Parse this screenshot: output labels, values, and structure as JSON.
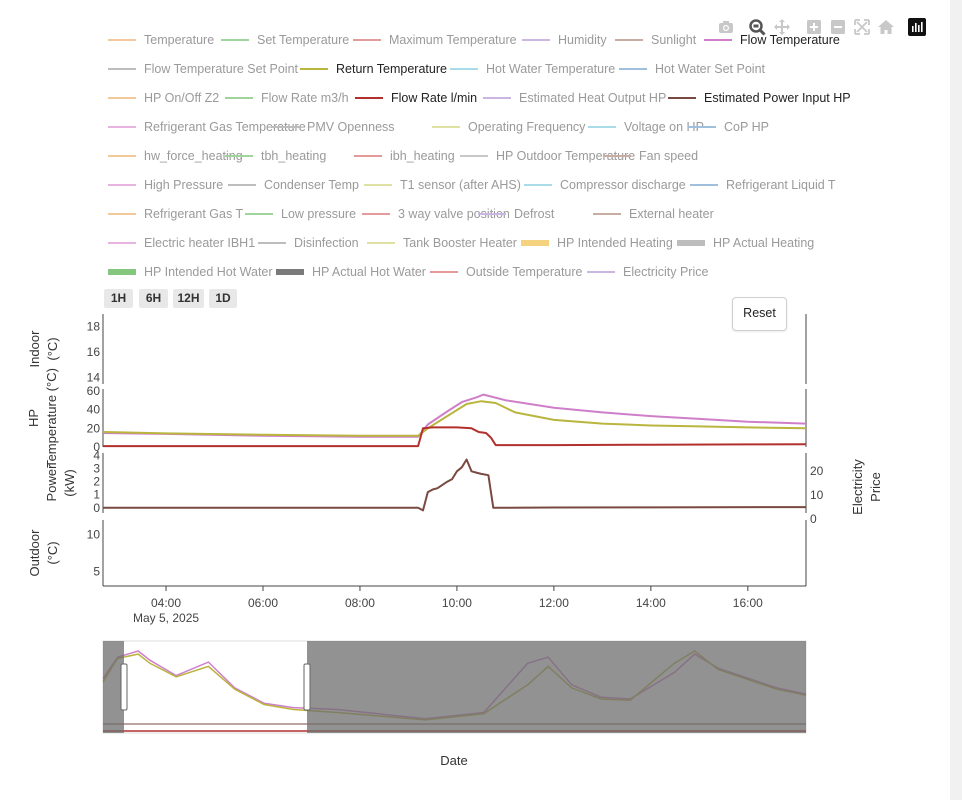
{
  "modebar": {
    "icons": [
      "camera-icon",
      "zoom-icon",
      "pan-icon",
      "zoom-in-icon",
      "zoom-out-icon",
      "autoscale-icon",
      "reset-axes-icon",
      "plotly-logo-icon"
    ]
  },
  "legend": {
    "rows": [
      [
        {
          "label": "Temperature",
          "color": "#f3c89a",
          "kind": "line",
          "on": false
        },
        {
          "label": "Set Temperature",
          "color": "#9fd49c",
          "kind": "line",
          "on": false
        },
        {
          "label": "Maximum Temperature",
          "color": "#e59b9b",
          "kind": "line",
          "on": false
        },
        {
          "label": "Humidity",
          "color": "#cbb6e3",
          "kind": "line",
          "on": false
        },
        {
          "label": "Sunlight",
          "color": "#c9aca3",
          "kind": "line",
          "on": false
        },
        {
          "label": "Flow Temperature",
          "color": "#cf7fc9",
          "kind": "line",
          "on": true
        }
      ],
      [
        {
          "label": "Flow Temperature Set Point",
          "color": "#bdbdbd",
          "kind": "line",
          "on": false
        },
        {
          "label": "Return Temperature",
          "color": "#b9b53d",
          "kind": "line",
          "on": true
        },
        {
          "label": "Hot Water Temperature",
          "color": "#a9dce8",
          "kind": "line",
          "on": false
        },
        {
          "label": "Hot Water Set Point",
          "color": "#9fbfdc",
          "kind": "line",
          "on": false
        }
      ],
      [
        {
          "label": "HP On/Off Z2",
          "color": "#f3c89a",
          "kind": "line",
          "on": false
        },
        {
          "label": "Flow Rate m3/h",
          "color": "#9fd49c",
          "kind": "line",
          "on": false
        },
        {
          "label": "Flow Rate l/min",
          "color": "#b2312f",
          "kind": "line",
          "on": true
        },
        {
          "label": "Estimated Heat Output HP",
          "color": "#cbb6e3",
          "kind": "line",
          "on": false
        },
        {
          "label": "Estimated Power Input HP",
          "color": "#7a4a42",
          "kind": "line",
          "on": true
        }
      ],
      [
        {
          "label": "Refrigerant Gas Temperature",
          "color": "#e9b3e0",
          "kind": "line",
          "on": false
        },
        {
          "label": "PMV Openness",
          "color": "#bdbdbd",
          "kind": "line",
          "on": false
        },
        {
          "label": "Operating Frequency",
          "color": "#dfe0a3",
          "kind": "line",
          "on": false
        },
        {
          "label": "Voltage on HP",
          "color": "#a9dce8",
          "kind": "line",
          "on": false
        },
        {
          "label": "CoP HP",
          "color": "#9fbfdc",
          "kind": "line",
          "on": false
        }
      ],
      [
        {
          "label": "hw_force_heating",
          "color": "#f3c89a",
          "kind": "line",
          "on": false
        },
        {
          "label": "tbh_heating",
          "color": "#9fd49c",
          "kind": "line",
          "on": false
        },
        {
          "label": "ibh_heating",
          "color": "#e59b9b",
          "kind": "line",
          "on": false
        },
        {
          "label": "HP Outdoor Temperature",
          "color": "#c8c8c8",
          "kind": "line",
          "on": false
        },
        {
          "label": "Fan speed",
          "color": "#c9aca3",
          "kind": "line",
          "on": false
        }
      ],
      [
        {
          "label": "High Pressure",
          "color": "#e9b3e0",
          "kind": "line",
          "on": false
        },
        {
          "label": "Condenser Temp",
          "color": "#bdbdbd",
          "kind": "line",
          "on": false
        },
        {
          "label": "T1 sensor (after AHS)",
          "color": "#dfe0a3",
          "kind": "line",
          "on": false
        },
        {
          "label": "Compressor discharge",
          "color": "#a9dce8",
          "kind": "line",
          "on": false
        },
        {
          "label": "Refrigerant Liquid T",
          "color": "#9fbfdc",
          "kind": "line",
          "on": false
        }
      ],
      [
        {
          "label": "Refrigerant Gas T",
          "color": "#f3c89a",
          "kind": "line",
          "on": false
        },
        {
          "label": "Low pressure",
          "color": "#9fd49c",
          "kind": "line",
          "on": false
        },
        {
          "label": "3 way valve position",
          "color": "#e59b9b",
          "kind": "line",
          "on": false
        },
        {
          "label": "Defrost",
          "color": "#cbb6e3",
          "kind": "line",
          "on": false
        },
        {
          "label": "External heater",
          "color": "#c9aca3",
          "kind": "line",
          "on": false
        }
      ],
      [
        {
          "label": "Electric heater IBH1",
          "color": "#e9b3e0",
          "kind": "line",
          "on": false
        },
        {
          "label": "Disinfection",
          "color": "#bdbdbd",
          "kind": "line",
          "on": false
        },
        {
          "label": "Tank Booster Heater",
          "color": "#dfe0a3",
          "kind": "line",
          "on": false
        },
        {
          "label": "HP Intended Heating",
          "color": "#f5d27f",
          "kind": "fill",
          "on": false
        },
        {
          "label": "HP Actual Heating",
          "color": "#bdbdbd",
          "kind": "fill",
          "on": false
        }
      ],
      [
        {
          "label": "HP Intended Hot Water",
          "color": "#86c77f",
          "kind": "fill",
          "on": false
        },
        {
          "label": "HP Actual Hot Water",
          "color": "#7a7a7a",
          "kind": "fill",
          "on": false
        },
        {
          "label": "Outside Temperature",
          "color": "#e59b9b",
          "kind": "line",
          "on": false
        },
        {
          "label": "Electricity Price",
          "color": "#cbb6e3",
          "kind": "line",
          "on": false
        }
      ]
    ]
  },
  "range_buttons": [
    "1H",
    "6H",
    "12H",
    "1D"
  ],
  "reset_label": "Reset",
  "chart_data": {
    "type": "line",
    "x_axis": {
      "ticks": [
        "04:00",
        "06:00",
        "08:00",
        "10:00",
        "12:00",
        "14:00",
        "16:00"
      ],
      "tick_hours": [
        4,
        6,
        8,
        10,
        12,
        14,
        16
      ],
      "range_hours": [
        2.7,
        17.2
      ],
      "date_label": "May 5, 2025"
    },
    "rangeslider_title": "Date",
    "panels": [
      {
        "ylabel": "Indoor (°C)",
        "ylim": [
          13.5,
          19
        ],
        "yticks": [
          14,
          16,
          18
        ],
        "series": []
      },
      {
        "ylabel": "HP Temperature (°C)",
        "ylim": [
          0,
          62
        ],
        "yticks": [
          0,
          20,
          40,
          60
        ],
        "series": [
          {
            "name": "Flow Temperature",
            "color": "#cf7fc9",
            "points": [
              [
                2.7,
                15
              ],
              [
                4,
                14
              ],
              [
                6,
                12
              ],
              [
                8,
                11
              ],
              [
                9.2,
                11
              ],
              [
                9.4,
                24
              ],
              [
                9.8,
                38
              ],
              [
                10.1,
                48
              ],
              [
                10.4,
                53
              ],
              [
                10.55,
                56
              ],
              [
                10.7,
                54
              ],
              [
                11,
                50
              ],
              [
                12,
                42
              ],
              [
                13,
                37
              ],
              [
                14,
                33
              ],
              [
                15,
                30
              ],
              [
                16,
                27
              ],
              [
                17.2,
                25
              ]
            ]
          },
          {
            "name": "Return Temperature",
            "color": "#b9b53d",
            "points": [
              [
                2.7,
                16
              ],
              [
                4,
                14.5
              ],
              [
                6,
                13
              ],
              [
                8,
                12
              ],
              [
                9.2,
                12
              ],
              [
                9.4,
                20
              ],
              [
                9.8,
                33
              ],
              [
                10.2,
                46
              ],
              [
                10.5,
                49
              ],
              [
                10.8,
                47
              ],
              [
                11.2,
                37
              ],
              [
                12,
                29
              ],
              [
                13,
                25
              ],
              [
                14,
                23
              ],
              [
                15,
                22
              ],
              [
                16,
                21
              ],
              [
                17.2,
                20
              ]
            ]
          },
          {
            "name": "Flow Rate l/min",
            "color": "#b2312f",
            "points": [
              [
                2.7,
                1
              ],
              [
                9.2,
                1
              ],
              [
                9.3,
                20
              ],
              [
                9.5,
                21
              ],
              [
                10,
                21
              ],
              [
                10.3,
                20
              ],
              [
                10.45,
                16
              ],
              [
                10.6,
                15
              ],
              [
                10.7,
                10
              ],
              [
                10.8,
                2
              ],
              [
                12,
                2
              ],
              [
                14,
                2.5
              ],
              [
                16,
                2.8
              ],
              [
                17.2,
                3
              ]
            ]
          }
        ]
      },
      {
        "ylabel": "Power (kW)",
        "ylim": [
          -0.4,
          4.2
        ],
        "yticks": [
          0,
          1,
          2,
          3,
          4
        ],
        "y2label": "Electricity Price",
        "y2ticks": [
          0,
          10,
          20
        ],
        "series": [
          {
            "name": "Estimated Power Input HP",
            "color": "#7a4a42",
            "points": [
              [
                2.7,
                0
              ],
              [
                9.2,
                0
              ],
              [
                9.3,
                -0.2
              ],
              [
                9.4,
                1.2
              ],
              [
                9.5,
                1.4
              ],
              [
                9.6,
                1.5
              ],
              [
                9.8,
                2.0
              ],
              [
                9.9,
                2.2
              ],
              [
                10.0,
                2.8
              ],
              [
                10.1,
                3.1
              ],
              [
                10.2,
                3.7
              ],
              [
                10.3,
                2.8
              ],
              [
                10.4,
                2.7
              ],
              [
                10.5,
                2.6
              ],
              [
                10.65,
                2.5
              ],
              [
                10.75,
                0.0
              ],
              [
                12,
                0.02
              ],
              [
                14,
                0.03
              ],
              [
                17.2,
                0.05
              ]
            ]
          }
        ]
      },
      {
        "ylabel": "Outdoor (°C)",
        "ylim": [
          3,
          12
        ],
        "yticks": [
          5,
          10
        ],
        "series": []
      }
    ]
  }
}
